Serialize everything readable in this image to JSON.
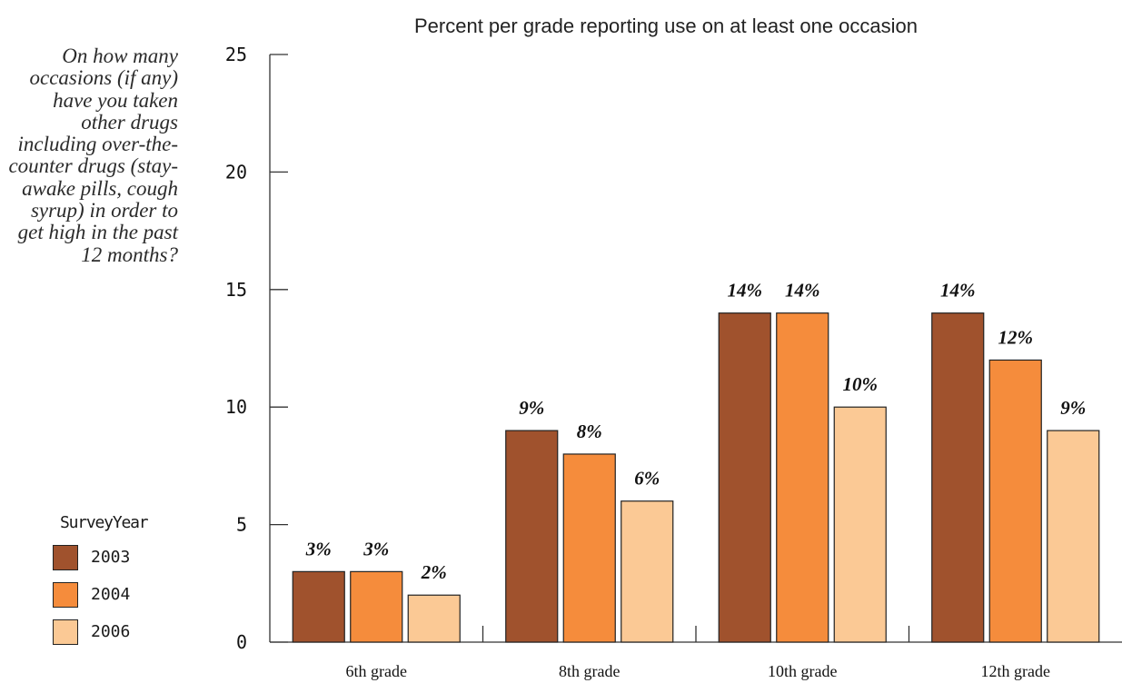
{
  "question": "On how many occasions (if any) have you taken other drugs including over-the-counter drugs (stay-awake pills, cough syrup) in order to get high in the past 12 months?",
  "legend": {
    "title": "SurveyYear",
    "items": [
      {
        "label": "2003",
        "color": "#a0522d"
      },
      {
        "label": "2004",
        "color": "#f58c3c"
      },
      {
        "label": "2006",
        "color": "#fbc995"
      }
    ]
  },
  "chart_data": {
    "type": "bar",
    "title": "Percent per grade reporting use on at least one occasion",
    "xlabel": "",
    "ylabel": "",
    "ylim": [
      0,
      25
    ],
    "yticks": [
      0,
      5,
      10,
      15,
      20,
      25
    ],
    "categories": [
      "6th grade",
      "8th grade",
      "10th grade",
      "12th grade"
    ],
    "series": [
      {
        "name": "2003",
        "color": "#a0522d",
        "values": [
          3,
          9,
          14,
          14
        ],
        "labels": [
          "3%",
          "9%",
          "14%",
          "14%"
        ]
      },
      {
        "name": "2004",
        "color": "#f58c3c",
        "values": [
          3,
          8,
          14,
          12
        ],
        "labels": [
          "3%",
          "8%",
          "14%",
          "12%"
        ]
      },
      {
        "name": "2006",
        "color": "#fbc995",
        "values": [
          2,
          6,
          10,
          9
        ],
        "labels": [
          "2%",
          "6%",
          "10%",
          "9%"
        ]
      }
    ],
    "grid": false,
    "legend_position": "left"
  }
}
